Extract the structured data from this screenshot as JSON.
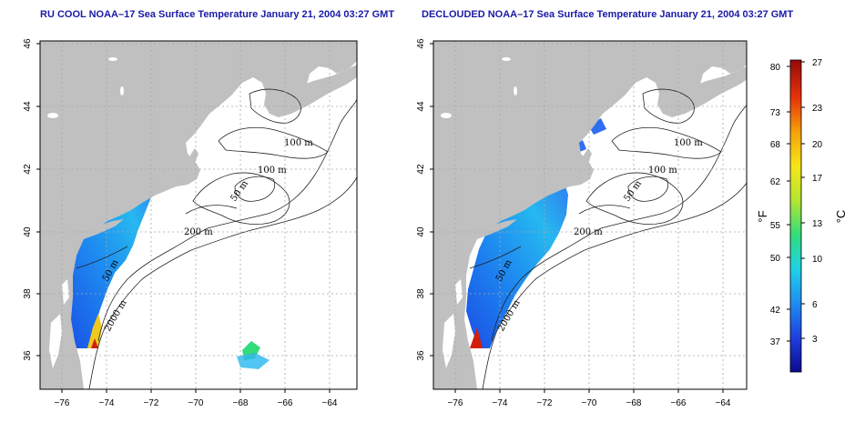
{
  "panels": [
    {
      "title": "RU COOL NOAA–17 Sea Surface Temperature January 21, 2004 03:27 GMT",
      "contour_labels": [
        "100 m",
        "100 m",
        "50 m",
        "200 m",
        "50 m",
        "2000 m"
      ]
    },
    {
      "title": "DECLOUDED NOAA–17 Sea Surface Temperature January 21, 2004 03:27 GMT",
      "contour_labels": [
        "100 m",
        "100 m",
        "50 m",
        "200 m",
        "50 m",
        "2000 m"
      ]
    }
  ],
  "axes": {
    "lon_ticks": [
      "−76",
      "−74",
      "−72",
      "−70",
      "−68",
      "−66",
      "−64"
    ],
    "lat_ticks": [
      "36",
      "38",
      "40",
      "42",
      "44",
      "46"
    ],
    "lon_range": [
      -77.2,
      -63.0
    ],
    "lat_range": [
      35.0,
      46.2
    ]
  },
  "colorbar": {
    "fahrenheit_label": "°F",
    "celsius_label": "°C",
    "fahrenheit_ticks": [
      "80",
      "73",
      "68",
      "62",
      "55",
      "50",
      "42",
      "37"
    ],
    "celsius_ticks": [
      "27",
      "23",
      "20",
      "17",
      "13",
      "10",
      "6",
      "3"
    ],
    "colors": [
      "#0a0a8c",
      "#1f3fe0",
      "#1e8cf0",
      "#1fd2e8",
      "#32dc7a",
      "#b4e632",
      "#f5e616",
      "#f5a00a",
      "#e6320a",
      "#960a0a"
    ]
  },
  "colors": {
    "land": "#c0c0c0",
    "ocean": "#ffffff",
    "grid": "#a8a8a8",
    "title": "#1a1aa8"
  }
}
